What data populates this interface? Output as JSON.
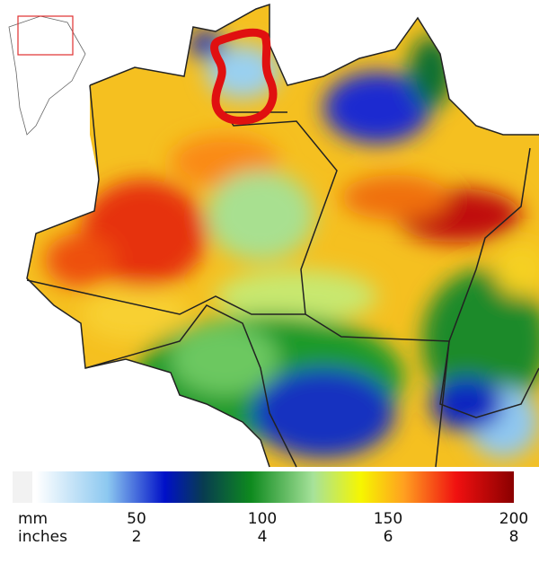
{
  "colorbar": {
    "scales": [
      {
        "unit": "mm",
        "lim": [
          0,
          200
        ],
        "ticks": [
          50,
          100,
          150,
          200
        ]
      },
      {
        "unit": "inches",
        "lim": [
          0,
          8
        ],
        "ticks": [
          2,
          4,
          6,
          8
        ]
      }
    ]
  }
}
